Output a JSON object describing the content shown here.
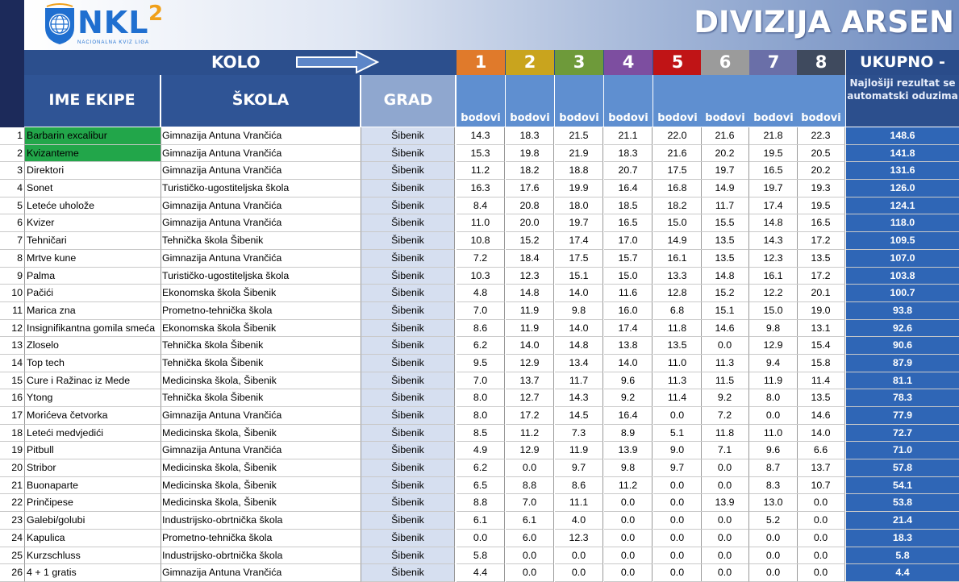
{
  "logo": {
    "main": "NKL",
    "superscript": "2",
    "subtitle": "NACIONALNA KVIZ LIGA"
  },
  "division_title": "DIVIZIJA ARSEN",
  "header": {
    "kolo": "KOLO",
    "ime_ekipe": "IME EKIPE",
    "skola": "ŠKOLA",
    "grad": "GRAD",
    "rounds": [
      "1",
      "2",
      "3",
      "4",
      "5",
      "6",
      "7",
      "8"
    ],
    "round_colors": [
      "#e07a2b",
      "#c9a41e",
      "#6e9a3a",
      "#7d4ea0",
      "#c01416",
      "#9b9b9b",
      "#6a6fa8",
      "#3f4a5e"
    ],
    "bodovi": "bodovi",
    "ukupno": "UKUPNO -",
    "note": "Najlošiji rezultat se automatski oduzima"
  },
  "rows": [
    {
      "n": "1",
      "team": "Barbarin excalibur",
      "school": "Gimnazija Antuna Vrančića",
      "city": "Šibenik",
      "scores": [
        "14.3",
        "18.3",
        "21.5",
        "21.1",
        "22.0",
        "21.6",
        "21.8",
        "22.3"
      ],
      "total": "148.6",
      "highlight": true
    },
    {
      "n": "2",
      "team": "Kvizanteme",
      "school": "Gimnazija Antuna Vrančića",
      "city": "Šibenik",
      "scores": [
        "15.3",
        "19.8",
        "21.9",
        "18.3",
        "21.6",
        "20.2",
        "19.5",
        "20.5"
      ],
      "total": "141.8",
      "highlight": true
    },
    {
      "n": "3",
      "team": "Direktori",
      "school": "Gimnazija Antuna Vrančića",
      "city": "Šibenik",
      "scores": [
        "11.2",
        "18.2",
        "18.8",
        "20.7",
        "17.5",
        "19.7",
        "16.5",
        "20.2"
      ],
      "total": "131.6"
    },
    {
      "n": "4",
      "team": "Sonet",
      "school": "Turističko-ugostiteljska škola",
      "city": "Šibenik",
      "scores": [
        "16.3",
        "17.6",
        "19.9",
        "16.4",
        "16.8",
        "14.9",
        "19.7",
        "19.3"
      ],
      "total": "126.0"
    },
    {
      "n": "5",
      "team": "Leteće uholože",
      "school": "Gimnazija Antuna Vrančića",
      "city": "Šibenik",
      "scores": [
        "8.4",
        "20.8",
        "18.0",
        "18.5",
        "18.2",
        "11.7",
        "17.4",
        "19.5"
      ],
      "total": "124.1"
    },
    {
      "n": "6",
      "team": "Kvizer",
      "school": "Gimnazija Antuna Vrančića",
      "city": "Šibenik",
      "scores": [
        "11.0",
        "20.0",
        "19.7",
        "16.5",
        "15.0",
        "15.5",
        "14.8",
        "16.5"
      ],
      "total": "118.0"
    },
    {
      "n": "7",
      "team": "Tehničari",
      "school": "Tehnička škola Šibenik",
      "city": "Šibenik",
      "scores": [
        "10.8",
        "15.2",
        "17.4",
        "17.0",
        "14.9",
        "13.5",
        "14.3",
        "17.2"
      ],
      "total": "109.5"
    },
    {
      "n": "8",
      "team": "Mrtve kune",
      "school": "Gimnazija Antuna Vrančića",
      "city": "Šibenik",
      "scores": [
        "7.2",
        "18.4",
        "17.5",
        "15.7",
        "16.1",
        "13.5",
        "12.3",
        "13.5"
      ],
      "total": "107.0"
    },
    {
      "n": "9",
      "team": "Palma",
      "school": "Turističko-ugostiteljska škola",
      "city": "Šibenik",
      "scores": [
        "10.3",
        "12.3",
        "15.1",
        "15.0",
        "13.3",
        "14.8",
        "16.1",
        "17.2"
      ],
      "total": "103.8"
    },
    {
      "n": "10",
      "team": "Pačići",
      "school": "Ekonomska škola Šibenik",
      "city": "Šibenik",
      "scores": [
        "4.8",
        "14.8",
        "14.0",
        "11.6",
        "12.8",
        "15.2",
        "12.2",
        "20.1"
      ],
      "total": "100.7"
    },
    {
      "n": "11",
      "team": "Marica zna",
      "school": "Prometno-tehnička škola",
      "city": "Šibenik",
      "scores": [
        "7.0",
        "11.9",
        "9.8",
        "16.0",
        "6.8",
        "15.1",
        "15.0",
        "19.0"
      ],
      "total": "93.8"
    },
    {
      "n": "12",
      "team": "Insignifikantna gomila smeća",
      "school": "Ekonomska škola Šibenik",
      "city": "Šibenik",
      "scores": [
        "8.6",
        "11.9",
        "14.0",
        "17.4",
        "11.8",
        "14.6",
        "9.8",
        "13.1"
      ],
      "total": "92.6"
    },
    {
      "n": "13",
      "team": "Zloselo",
      "school": "Tehnička škola Šibenik",
      "city": "Šibenik",
      "scores": [
        "6.2",
        "14.0",
        "14.8",
        "13.8",
        "13.5",
        "0.0",
        "12.9",
        "15.4"
      ],
      "total": "90.6"
    },
    {
      "n": "14",
      "team": "Top tech",
      "school": "Tehnička škola Šibenik",
      "city": "Šibenik",
      "scores": [
        "9.5",
        "12.9",
        "13.4",
        "14.0",
        "11.0",
        "11.3",
        "9.4",
        "15.8"
      ],
      "total": "87.9"
    },
    {
      "n": "15",
      "team": "Cure i Ražinac iz Mede",
      "school": "Medicinska škola, Šibenik",
      "city": "Šibenik",
      "scores": [
        "7.0",
        "13.7",
        "11.7",
        "9.6",
        "11.3",
        "11.5",
        "11.9",
        "11.4"
      ],
      "total": "81.1"
    },
    {
      "n": "16",
      "team": "Ytong",
      "school": "Tehnička škola Šibenik",
      "city": "Šibenik",
      "scores": [
        "8.0",
        "12.7",
        "14.3",
        "9.2",
        "11.4",
        "9.2",
        "8.0",
        "13.5"
      ],
      "total": "78.3"
    },
    {
      "n": "17",
      "team": "Morićeva četvorka",
      "school": "Gimnazija Antuna Vrančića",
      "city": "Šibenik",
      "scores": [
        "8.0",
        "17.2",
        "14.5",
        "16.4",
        "0.0",
        "7.2",
        "0.0",
        "14.6"
      ],
      "total": "77.9"
    },
    {
      "n": "18",
      "team": "Leteći medvjedići",
      "school": "Medicinska škola, Šibenik",
      "city": "Šibenik",
      "scores": [
        "8.5",
        "11.2",
        "7.3",
        "8.9",
        "5.1",
        "11.8",
        "11.0",
        "14.0"
      ],
      "total": "72.7"
    },
    {
      "n": "19",
      "team": "Pitbull",
      "school": "Gimnazija Antuna Vrančića",
      "city": "Šibenik",
      "scores": [
        "4.9",
        "12.9",
        "11.9",
        "13.9",
        "9.0",
        "7.1",
        "9.6",
        "6.6"
      ],
      "total": "71.0"
    },
    {
      "n": "20",
      "team": "Stribor",
      "school": "Medicinska škola, Šibenik",
      "city": "Šibenik",
      "scores": [
        "6.2",
        "0.0",
        "9.7",
        "9.8",
        "9.7",
        "0.0",
        "8.7",
        "13.7"
      ],
      "total": "57.8"
    },
    {
      "n": "21",
      "team": "Buonaparte",
      "school": "Medicinska škola, Šibenik",
      "city": "Šibenik",
      "scores": [
        "6.5",
        "8.8",
        "8.6",
        "11.2",
        "0.0",
        "0.0",
        "8.3",
        "10.7"
      ],
      "total": "54.1"
    },
    {
      "n": "22",
      "team": "Prinčipese",
      "school": "Medicinska škola, Šibenik",
      "city": "Šibenik",
      "scores": [
        "8.8",
        "7.0",
        "11.1",
        "0.0",
        "0.0",
        "13.9",
        "13.0",
        "0.0"
      ],
      "total": "53.8"
    },
    {
      "n": "23",
      "team": "Galebi/golubi",
      "school": "Industrijsko-obrtnička škola",
      "city": "Šibenik",
      "scores": [
        "6.1",
        "6.1",
        "4.0",
        "0.0",
        "0.0",
        "0.0",
        "5.2",
        "0.0"
      ],
      "total": "21.4"
    },
    {
      "n": "24",
      "team": "Kapulica",
      "school": "Prometno-tehnička škola",
      "city": "Šibenik",
      "scores": [
        "0.0",
        "6.0",
        "12.3",
        "0.0",
        "0.0",
        "0.0",
        "0.0",
        "0.0"
      ],
      "total": "18.3"
    },
    {
      "n": "25",
      "team": "Kurzschluss",
      "school": "Industrijsko-obrtnička škola",
      "city": "Šibenik",
      "scores": [
        "5.8",
        "0.0",
        "0.0",
        "0.0",
        "0.0",
        "0.0",
        "0.0",
        "0.0"
      ],
      "total": "5.8"
    },
    {
      "n": "26",
      "team": "4 + 1 gratis",
      "school": "Gimnazija Antuna Vrančića",
      "city": "Šibenik",
      "scores": [
        "4.4",
        "0.0",
        "0.0",
        "0.0",
        "0.0",
        "0.0",
        "0.0",
        "0.0"
      ],
      "total": "4.4"
    }
  ]
}
